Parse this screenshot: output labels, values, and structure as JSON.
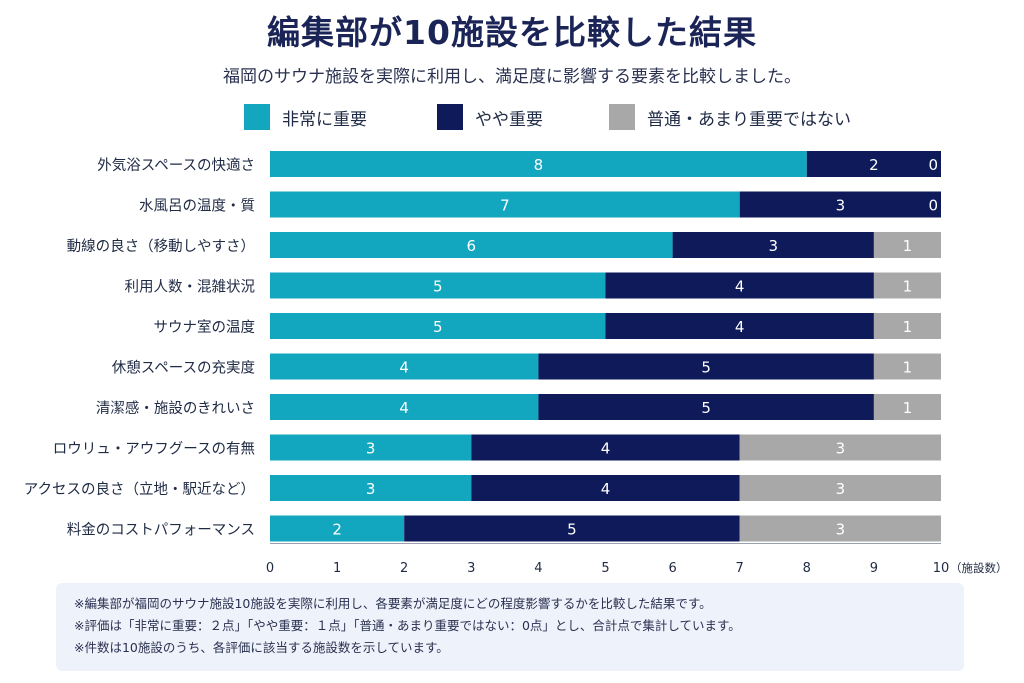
{
  "title": "編集部が10施設を比較した結果",
  "subtitle": "福岡のサウナ施設を実際に利用し、満足度に影響する要素を比較しました。",
  "colors": {
    "very_important": "#13a6bf",
    "somewhat_important": "#0e1a5a",
    "not_important": "#a8a8a8"
  },
  "chart_data": {
    "type": "bar",
    "orientation": "horizontal",
    "stacked": true,
    "categories": [
      "外気浴スペースの快適さ",
      "水風呂の温度・質",
      "動線の良さ（移動しやすさ）",
      "利用人数・混雑状況",
      "サウナ室の温度",
      "休憩スペースの充実度",
      "清潔感・施設のきれいさ",
      "ロウリュ・アウフグースの有無",
      "アクセスの良さ（立地・駅近など）",
      "料金のコストパフォーマンス"
    ],
    "series": [
      {
        "name": "非常に重要",
        "color": "#13a6bf",
        "values": [
          8,
          7,
          6,
          5,
          5,
          4,
          4,
          3,
          3,
          2
        ]
      },
      {
        "name": "やや重要",
        "color": "#0e1a5a",
        "values": [
          2,
          3,
          3,
          4,
          4,
          5,
          5,
          4,
          4,
          5
        ]
      },
      {
        "name": "普通・あまり重要ではない",
        "color": "#a8a8a8",
        "values": [
          0,
          0,
          1,
          1,
          1,
          1,
          1,
          3,
          3,
          3
        ]
      }
    ],
    "xlim": [
      0,
      10
    ],
    "xticks": [
      0,
      1,
      2,
      3,
      4,
      5,
      6,
      7,
      8,
      9,
      10
    ],
    "xlabel": "（施設数）",
    "grid": false,
    "legend": "top-center"
  },
  "notes": [
    "※編集部が福岡のサウナ施設10施設を実際に利用し、各要素が満足度にどの程度影響するかを比較した結果です。",
    "※評価は「非常に重要：２点」「やや重要：１点」「普通・あまり重要ではない：0点」とし、合計点で集計しています。",
    "※件数は10施設のうち、各評価に該当する施設数を示しています。"
  ]
}
